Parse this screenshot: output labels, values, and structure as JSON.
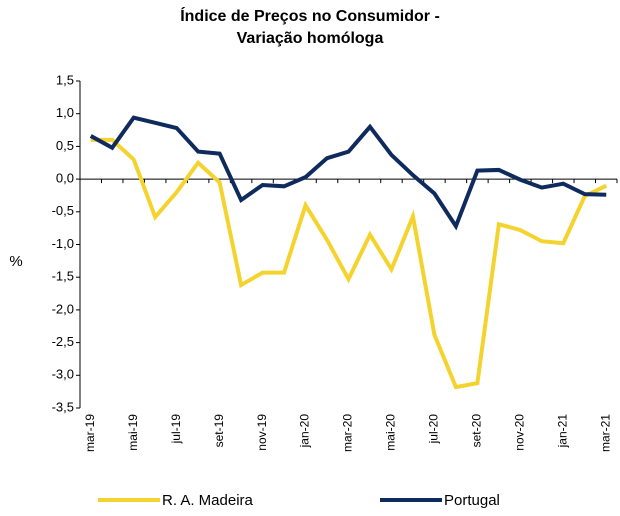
{
  "chart_data": {
    "type": "line",
    "title": "Índice de Preços no Consumidor - Variação homóloga",
    "y_label": "%",
    "categories": [
      "mar-19",
      null,
      "mai-19",
      null,
      "jul-19",
      null,
      "set-19",
      null,
      "nov-19",
      null,
      "jan-20",
      null,
      "mar-20",
      null,
      "mai-20",
      null,
      "jul-20",
      null,
      "set-20",
      null,
      "nov-20",
      null,
      "jan-21",
      null,
      "mar-21"
    ],
    "series": [
      {
        "name": "R. A. Madeira",
        "color": "#f5d32f",
        "values": [
          0.6,
          0.6,
          0.3,
          -0.58,
          -0.2,
          0.25,
          -0.05,
          -1.62,
          -1.43,
          -1.43,
          -0.4,
          -0.93,
          -1.53,
          -0.85,
          -1.38,
          -0.57,
          -2.38,
          -3.18,
          -3.12,
          -0.69,
          -0.78,
          -0.95,
          -0.98,
          -0.26,
          -0.1
        ]
      },
      {
        "name": "Portugal",
        "color": "#0f2a5c",
        "values": [
          0.66,
          0.48,
          0.94,
          0.86,
          0.78,
          0.42,
          0.39,
          -0.32,
          -0.09,
          -0.11,
          0.03,
          0.32,
          0.42,
          0.8,
          0.37,
          0.06,
          -0.22,
          -0.72,
          0.13,
          0.14,
          -0.01,
          -0.13,
          -0.07,
          -0.23,
          -0.24
        ]
      }
    ],
    "ylim": [
      -3.5,
      1.5
    ],
    "yticks": [
      {
        "value": 1.5,
        "label": "1,5"
      },
      {
        "value": 1.0,
        "label": "1,0"
      },
      {
        "value": 0.5,
        "label": "0,5"
      },
      {
        "value": 0,
        "label": "0,0"
      },
      {
        "value": -0.5,
        "label": "-0,5"
      },
      {
        "value": -1.0,
        "label": "-1,0"
      },
      {
        "value": -1.5,
        "label": "-1,5"
      },
      {
        "value": -2.0,
        "label": "-2,0"
      },
      {
        "value": -2.5,
        "label": "-2,5"
      },
      {
        "value": -3.0,
        "label": "-3,0"
      },
      {
        "value": -3.5,
        "label": "-3,5"
      }
    ],
    "legend": "bottom"
  }
}
